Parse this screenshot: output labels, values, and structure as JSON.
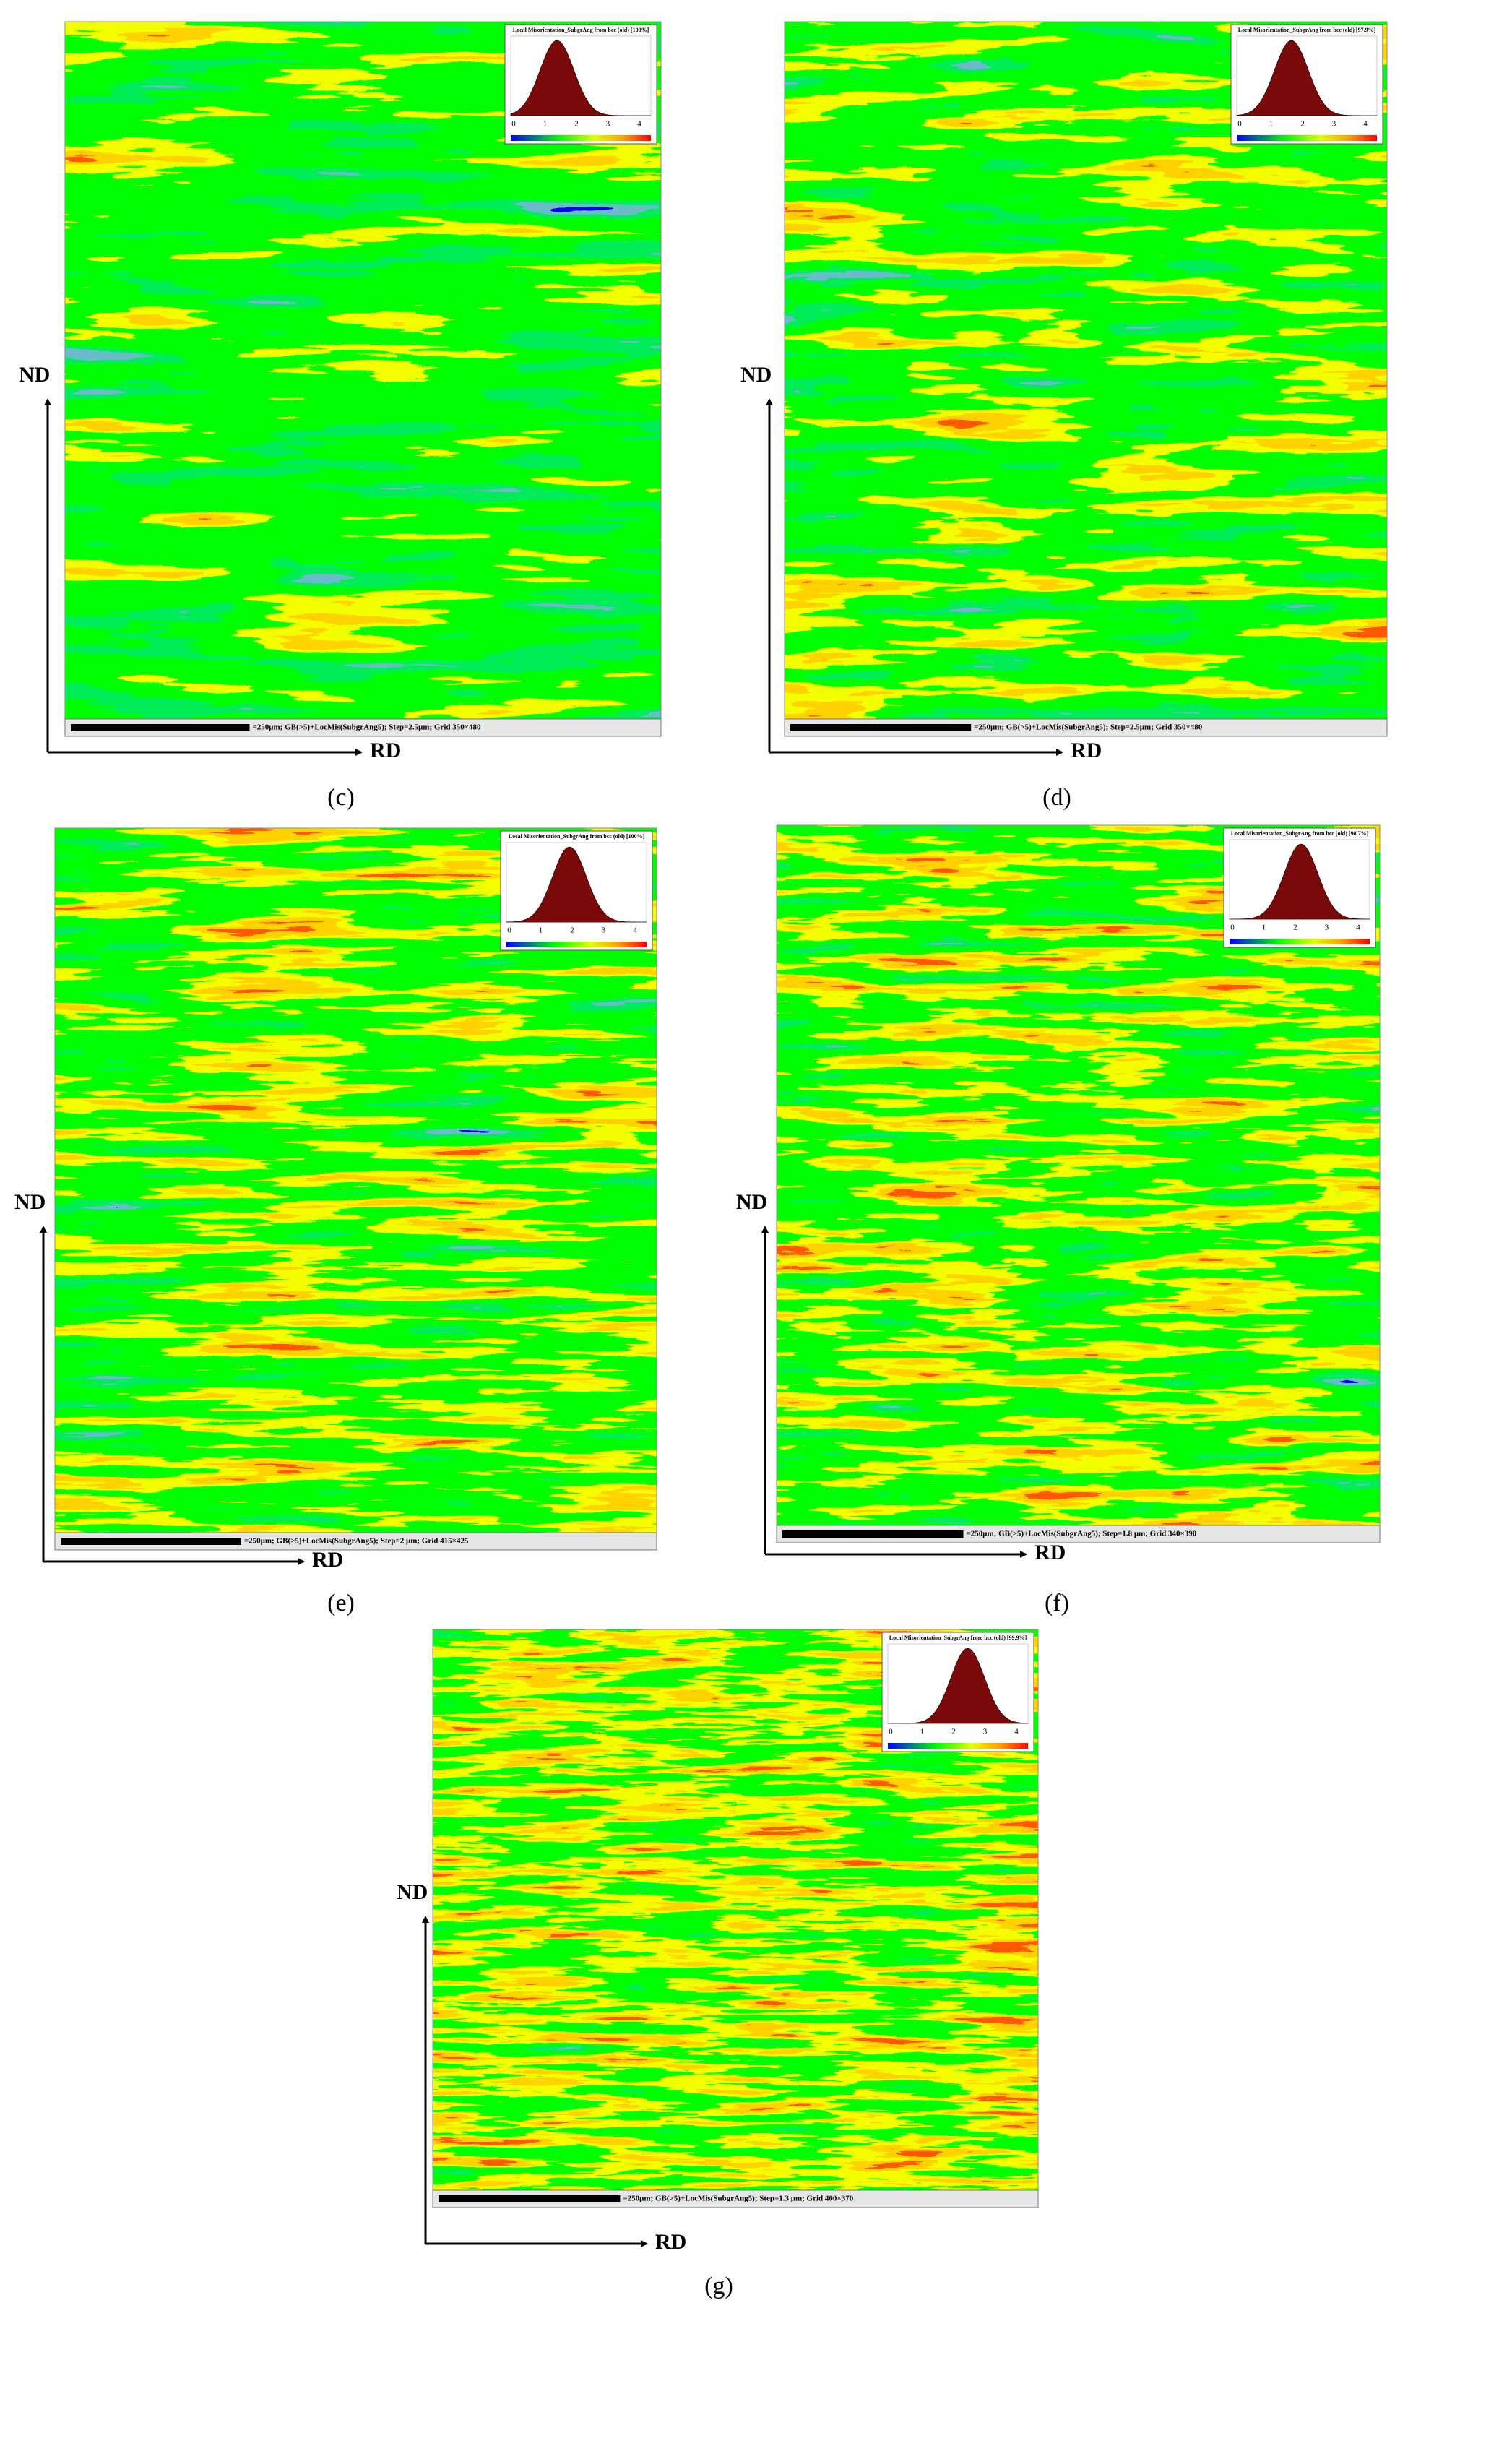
{
  "panels": [
    {
      "label": "(c)",
      "nd": "ND",
      "rd": "RD",
      "scale_text": "=250μm; GB(>5)+LocMis(SubgrAng5); Step=2.5μm; Grid 350×480",
      "inset_title": "Local Misorientation_SubgrAng from bcc (old) [100%]",
      "inset_ticks": [
        "0",
        "1",
        "2",
        "3",
        "4"
      ]
    },
    {
      "label": "(d)",
      "nd": "ND",
      "rd": "RD",
      "scale_text": "=250μm; GB(>5)+LocMis(SubgrAng5); Step=2.5μm; Grid 350×480",
      "inset_title": "Local Misorientation_SubgrAng from bcc (old) [97.9%]",
      "inset_ticks": [
        "0",
        "1",
        "2",
        "3",
        "4"
      ]
    },
    {
      "label": "(e)",
      "nd": "ND",
      "rd": "RD",
      "scale_text": "=250μm; GB(>5)+LocMis(SubgrAng5); Step=2 μm; Grid 415×425",
      "inset_title": "Local Misorientation_SubgrAng from bcc (old) [100%]",
      "inset_ticks": [
        "0",
        "1",
        "2",
        "3",
        "4"
      ]
    },
    {
      "label": "(f)",
      "nd": "ND",
      "rd": "RD",
      "scale_text": "=250μm; GB(>5)+LocMis(SubgrAng5); Step=1.8 μm; Grid 340×390",
      "inset_title": "Local Misorientation_SubgrAng from bcc (old) [98.7%]",
      "inset_ticks": [
        "0",
        "1",
        "2",
        "3",
        "4"
      ]
    },
    {
      "label": "(g)",
      "nd": "ND",
      "rd": "RD",
      "scale_text": "=250μm; GB(>5)+LocMis(SubgrAng5); Step=1.3 μm; Grid 400×370",
      "inset_title": "Local Misorientation_SubgrAng from bcc (old) [99.9%]",
      "inset_ticks": [
        "0",
        "1",
        "2",
        "3",
        "4"
      ]
    }
  ]
}
